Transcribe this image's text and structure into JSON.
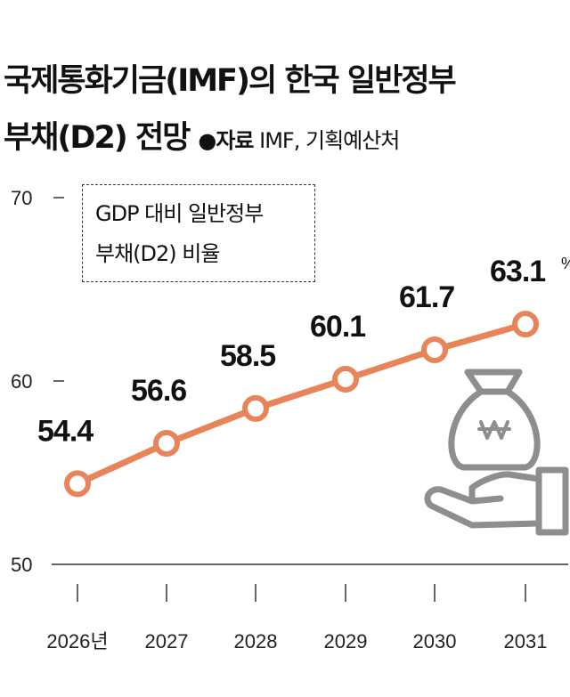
{
  "title_line1": "국제통화기금(IMF)의 한국 일반정부",
  "title_line2": "부채(D2) 전망",
  "source_label": "●자료",
  "source_text": "IMF, 기획예산처",
  "chart_data": {
    "type": "line",
    "legend_line1": "GDP 대비 일반정부",
    "legend_line2": "부채(D2) 비율",
    "categories": [
      "2026년",
      "2027",
      "2028",
      "2029",
      "2030",
      "2031"
    ],
    "values": [
      54.4,
      56.6,
      58.5,
      60.1,
      61.7,
      63.1
    ],
    "data_labels": [
      "54.4",
      "56.6",
      "58.5",
      "60.1",
      "61.7",
      "63.1"
    ],
    "unit": "%",
    "yticks": [
      50,
      60,
      70
    ],
    "ylim": [
      50,
      70
    ],
    "line_color": "#E8845A",
    "icon": "money-bag-hand-icon",
    "icon_color": "#8E8E8E"
  }
}
